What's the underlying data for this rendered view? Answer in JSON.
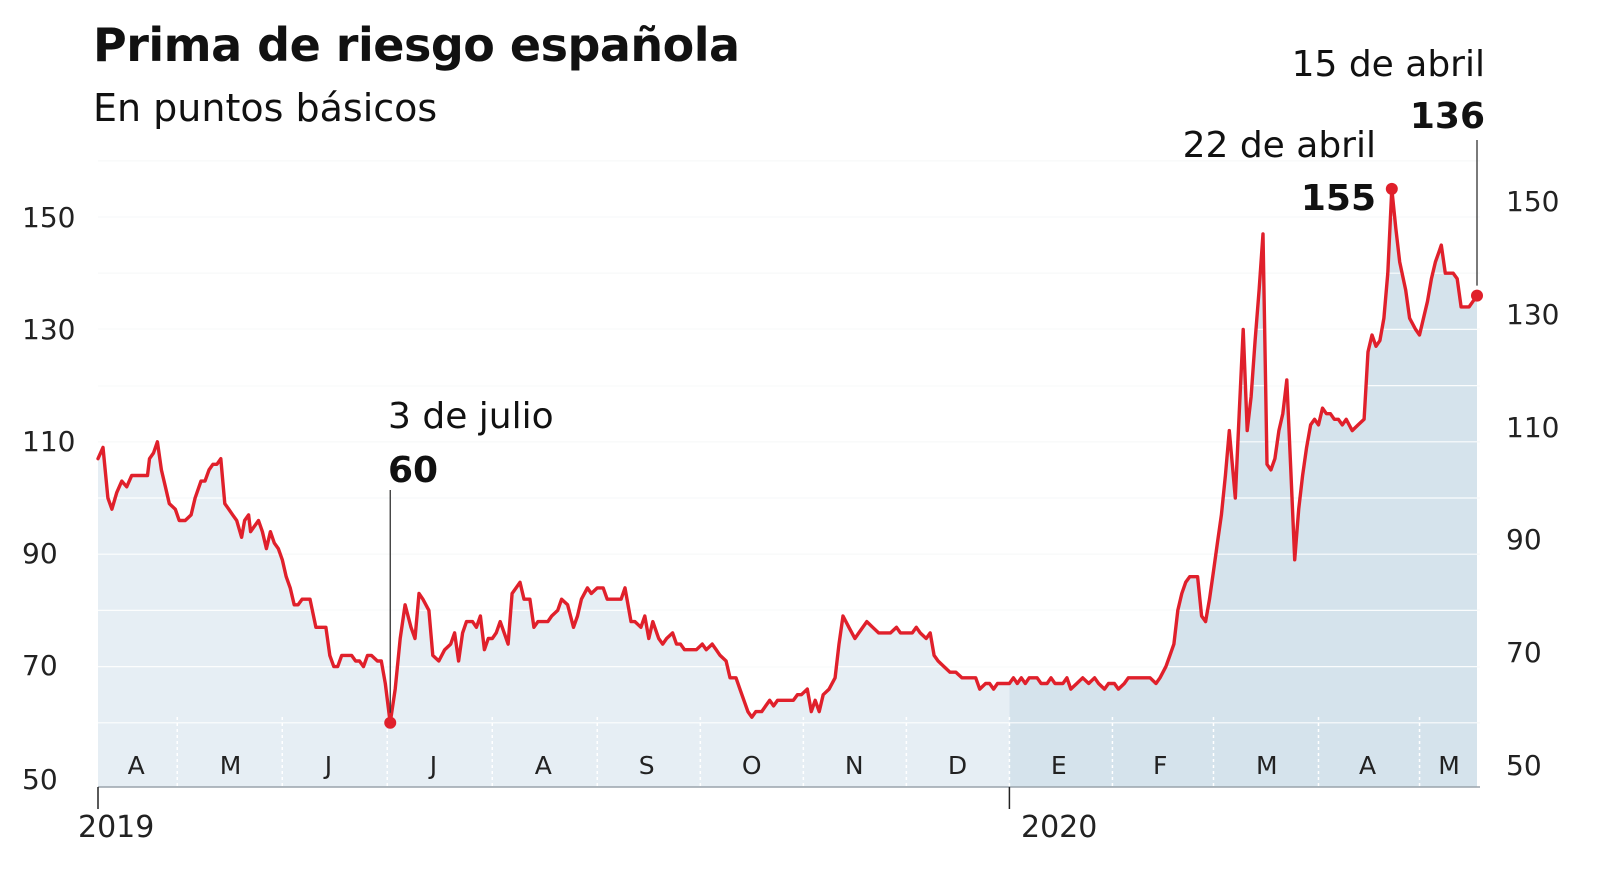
{
  "title": "Prima de riesgo española",
  "subtitle": "En puntos básicos",
  "chart_data": {
    "type": "area",
    "title": "Prima de riesgo española",
    "subtitle": "En puntos básicos",
    "ylim": [
      50,
      160
    ],
    "yticks": [
      50,
      70,
      90,
      110,
      130,
      150
    ],
    "grid": true,
    "month_labels": [
      "A",
      "M",
      "J",
      "J",
      "A",
      "S",
      "O",
      "N",
      "D",
      "E",
      "F",
      "M",
      "A",
      "M"
    ],
    "year_labels": [
      "2019",
      "2020"
    ],
    "colors": {
      "line": "#e0202b",
      "fill": "#e6eef4",
      "fill_2020": "#d5e3ec",
      "grid": "#dfe3e6"
    },
    "annotations": [
      {
        "date": "3 de julio",
        "value": "60"
      },
      {
        "date": "22 de abril",
        "value": "155"
      },
      {
        "date": "15 de abril",
        "value": "136"
      }
    ],
    "series": [
      {
        "values": [
          [
            0,
            107
          ],
          [
            5,
            109
          ],
          [
            10,
            100
          ],
          [
            14,
            98
          ],
          [
            19,
            101
          ],
          [
            24,
            103
          ],
          [
            29,
            102
          ],
          [
            34,
            104
          ],
          [
            40,
            104
          ],
          [
            46,
            104
          ],
          [
            50,
            104
          ],
          [
            52,
            107
          ],
          [
            56,
            108
          ],
          [
            60,
            110
          ],
          [
            64,
            105
          ],
          [
            68,
            102
          ],
          [
            72,
            99
          ],
          [
            78,
            98
          ],
          [
            82,
            96
          ],
          [
            88,
            96
          ],
          [
            94,
            97
          ],
          [
            98,
            100
          ],
          [
            102,
            102
          ],
          [
            104,
            103
          ],
          [
            108,
            103
          ],
          [
            112,
            105
          ],
          [
            116,
            106
          ],
          [
            120,
            106
          ],
          [
            124,
            107
          ],
          [
            128,
            99
          ],
          [
            132,
            98
          ],
          [
            136,
            97
          ],
          [
            140,
            96
          ],
          [
            145,
            93
          ],
          [
            148,
            96
          ],
          [
            152,
            97
          ],
          [
            154,
            94
          ],
          [
            158,
            95
          ],
          [
            162,
            96
          ],
          [
            166,
            94
          ],
          [
            170,
            91
          ],
          [
            174,
            94
          ],
          [
            178,
            92
          ],
          [
            182,
            91
          ],
          [
            186,
            89
          ],
          [
            190,
            86
          ],
          [
            194,
            84
          ],
          [
            198,
            81
          ],
          [
            202,
            81
          ],
          [
            206,
            82
          ],
          [
            210,
            82
          ],
          [
            214,
            82
          ],
          [
            220,
            77
          ],
          [
            224,
            77
          ],
          [
            230,
            77
          ],
          [
            234,
            72
          ],
          [
            238,
            70
          ],
          [
            242,
            70
          ],
          [
            246,
            72
          ],
          [
            252,
            72
          ],
          [
            256,
            72
          ],
          [
            260,
            71
          ],
          [
            264,
            71
          ],
          [
            268,
            70
          ],
          [
            272,
            72
          ],
          [
            276,
            72
          ],
          [
            282,
            71
          ],
          [
            286,
            71
          ],
          [
            290,
            67
          ],
          [
            295,
            60
          ],
          [
            300,
            66
          ],
          [
            305,
            75
          ],
          [
            310,
            81
          ],
          [
            316,
            77
          ],
          [
            320,
            75
          ],
          [
            324,
            83
          ],
          [
            328,
            82
          ],
          [
            334,
            80
          ],
          [
            338,
            72
          ],
          [
            344,
            71
          ],
          [
            350,
            73
          ],
          [
            356,
            74
          ],
          [
            360,
            76
          ],
          [
            364,
            71
          ],
          [
            368,
            76
          ],
          [
            372,
            78
          ],
          [
            378,
            78
          ],
          [
            382,
            77
          ],
          [
            386,
            79
          ],
          [
            390,
            73
          ],
          [
            394,
            75
          ],
          [
            398,
            75
          ],
          [
            402,
            76
          ],
          [
            406,
            78
          ],
          [
            410,
            76
          ],
          [
            414,
            74
          ],
          [
            418,
            83
          ],
          [
            422,
            84
          ],
          [
            426,
            85
          ],
          [
            430,
            82
          ],
          [
            436,
            82
          ],
          [
            440,
            77
          ],
          [
            444,
            78
          ],
          [
            448,
            78
          ],
          [
            454,
            78
          ],
          [
            458,
            79
          ],
          [
            464,
            80
          ],
          [
            468,
            82
          ],
          [
            474,
            81
          ],
          [
            480,
            77
          ],
          [
            484,
            79
          ],
          [
            488,
            82
          ],
          [
            494,
            84
          ],
          [
            498,
            83
          ],
          [
            504,
            84
          ],
          [
            510,
            84
          ],
          [
            514,
            82
          ],
          [
            518,
            82
          ],
          [
            522,
            82
          ],
          [
            528,
            82
          ],
          [
            532,
            84
          ],
          [
            538,
            78
          ],
          [
            542,
            78
          ],
          [
            548,
            77
          ],
          [
            552,
            79
          ],
          [
            556,
            75
          ],
          [
            560,
            78
          ],
          [
            566,
            75
          ],
          [
            570,
            74
          ],
          [
            574,
            75
          ],
          [
            580,
            76
          ],
          [
            584,
            74
          ],
          [
            588,
            74
          ],
          [
            592,
            73
          ],
          [
            598,
            73
          ],
          [
            604,
            73
          ],
          [
            610,
            74
          ],
          [
            614,
            73
          ],
          [
            620,
            74
          ],
          [
            624,
            73
          ],
          [
            628,
            72
          ],
          [
            634,
            71
          ],
          [
            638,
            68
          ],
          [
            644,
            68
          ],
          [
            648,
            66
          ],
          [
            652,
            64
          ],
          [
            656,
            62
          ],
          [
            660,
            61
          ],
          [
            664,
            62
          ],
          [
            670,
            62
          ],
          [
            674,
            63
          ],
          [
            678,
            64
          ],
          [
            682,
            63
          ],
          [
            686,
            64
          ],
          [
            690,
            64
          ],
          [
            694,
            64
          ],
          [
            698,
            64
          ],
          [
            702,
            64
          ],
          [
            706,
            65
          ],
          [
            710,
            65
          ],
          [
            716,
            66
          ],
          [
            720,
            62
          ],
          [
            724,
            64
          ],
          [
            728,
            62
          ],
          [
            732,
            65
          ],
          [
            738,
            66
          ],
          [
            744,
            68
          ],
          [
            748,
            74
          ],
          [
            752,
            79
          ],
          [
            758,
            77
          ],
          [
            764,
            75
          ],
          [
            768,
            76
          ],
          [
            772,
            77
          ],
          [
            776,
            78
          ],
          [
            782,
            77
          ],
          [
            788,
            76
          ],
          [
            794,
            76
          ],
          [
            800,
            76
          ],
          [
            806,
            77
          ],
          [
            810,
            76
          ],
          [
            816,
            76
          ],
          [
            822,
            76
          ],
          [
            826,
            77
          ],
          [
            830,
            76
          ],
          [
            836,
            75
          ],
          [
            840,
            76
          ],
          [
            844,
            72
          ],
          [
            848,
            71
          ],
          [
            854,
            70
          ],
          [
            860,
            69
          ],
          [
            866,
            69
          ],
          [
            872,
            68
          ],
          [
            876,
            68
          ],
          [
            882,
            68
          ],
          [
            886,
            68
          ],
          [
            890,
            66
          ],
          [
            896,
            67
          ],
          [
            900,
            67
          ],
          [
            904,
            66
          ],
          [
            908,
            67
          ],
          [
            914,
            67
          ],
          [
            920,
            67
          ],
          [
            924,
            68
          ],
          [
            928,
            67
          ],
          [
            932,
            68
          ],
          [
            936,
            67
          ],
          [
            940,
            68
          ],
          [
            944,
            68
          ],
          [
            948,
            68
          ],
          [
            952,
            67
          ],
          [
            958,
            67
          ],
          [
            962,
            68
          ],
          [
            966,
            67
          ],
          [
            970,
            67
          ],
          [
            974,
            67
          ],
          [
            978,
            68
          ],
          [
            982,
            66
          ],
          [
            988,
            67
          ],
          [
            994,
            68
          ],
          [
            1000,
            67
          ],
          [
            1006,
            68
          ],
          [
            1010,
            67
          ],
          [
            1016,
            66
          ],
          [
            1020,
            67
          ],
          [
            1026,
            67
          ],
          [
            1030,
            66
          ],
          [
            1036,
            67
          ],
          [
            1040,
            68
          ],
          [
            1044,
            68
          ],
          [
            1048,
            68
          ],
          [
            1052,
            68
          ],
          [
            1058,
            68
          ],
          [
            1062,
            68
          ],
          [
            1068,
            67
          ],
          [
            1072,
            68
          ],
          [
            1078,
            70
          ],
          [
            1082,
            72
          ],
          [
            1086,
            74
          ],
          [
            1090,
            80
          ],
          [
            1094,
            83
          ],
          [
            1098,
            85
          ],
          [
            1102,
            86
          ],
          [
            1106,
            86
          ],
          [
            1110,
            86
          ],
          [
            1114,
            79
          ],
          [
            1118,
            78
          ],
          [
            1122,
            82
          ],
          [
            1126,
            87
          ],
          [
            1130,
            92
          ],
          [
            1134,
            97
          ],
          [
            1138,
            104
          ],
          [
            1142,
            112
          ],
          [
            1148,
            100
          ],
          [
            1152,
            115
          ],
          [
            1156,
            130
          ],
          [
            1160,
            112
          ],
          [
            1164,
            118
          ],
          [
            1168,
            128
          ],
          [
            1172,
            137
          ],
          [
            1176,
            147
          ],
          [
            1180,
            106
          ],
          [
            1184,
            105
          ],
          [
            1188,
            107
          ],
          [
            1192,
            112
          ],
          [
            1196,
            115
          ],
          [
            1200,
            121
          ],
          [
            1204,
            105
          ],
          [
            1208,
            89
          ],
          [
            1212,
            98
          ],
          [
            1216,
            104
          ],
          [
            1220,
            109
          ],
          [
            1224,
            113
          ],
          [
            1228,
            114
          ],
          [
            1232,
            113
          ],
          [
            1236,
            116
          ],
          [
            1240,
            115
          ],
          [
            1244,
            115
          ],
          [
            1248,
            114
          ],
          [
            1252,
            114
          ],
          [
            1256,
            113
          ],
          [
            1260,
            114
          ],
          [
            1266,
            112
          ],
          [
            1272,
            113
          ],
          [
            1278,
            114
          ],
          [
            1282,
            126
          ],
          [
            1286,
            129
          ],
          [
            1290,
            127
          ],
          [
            1294,
            128
          ],
          [
            1298,
            132
          ],
          [
            1302,
            140
          ],
          [
            1306,
            155
          ],
          [
            1310,
            148
          ],
          [
            1314,
            142
          ],
          [
            1320,
            137
          ],
          [
            1324,
            132
          ],
          [
            1330,
            130
          ],
          [
            1334,
            129
          ],
          [
            1338,
            132
          ],
          [
            1342,
            135
          ],
          [
            1346,
            139
          ],
          [
            1350,
            142
          ],
          [
            1354,
            144
          ],
          [
            1356,
            145
          ],
          [
            1360,
            140
          ],
          [
            1364,
            140
          ],
          [
            1368,
            140
          ],
          [
            1372,
            139
          ],
          [
            1376,
            134
          ],
          [
            1380,
            134
          ],
          [
            1384,
            134
          ],
          [
            1388,
            135
          ],
          [
            1392,
            136
          ]
        ]
      }
    ]
  }
}
